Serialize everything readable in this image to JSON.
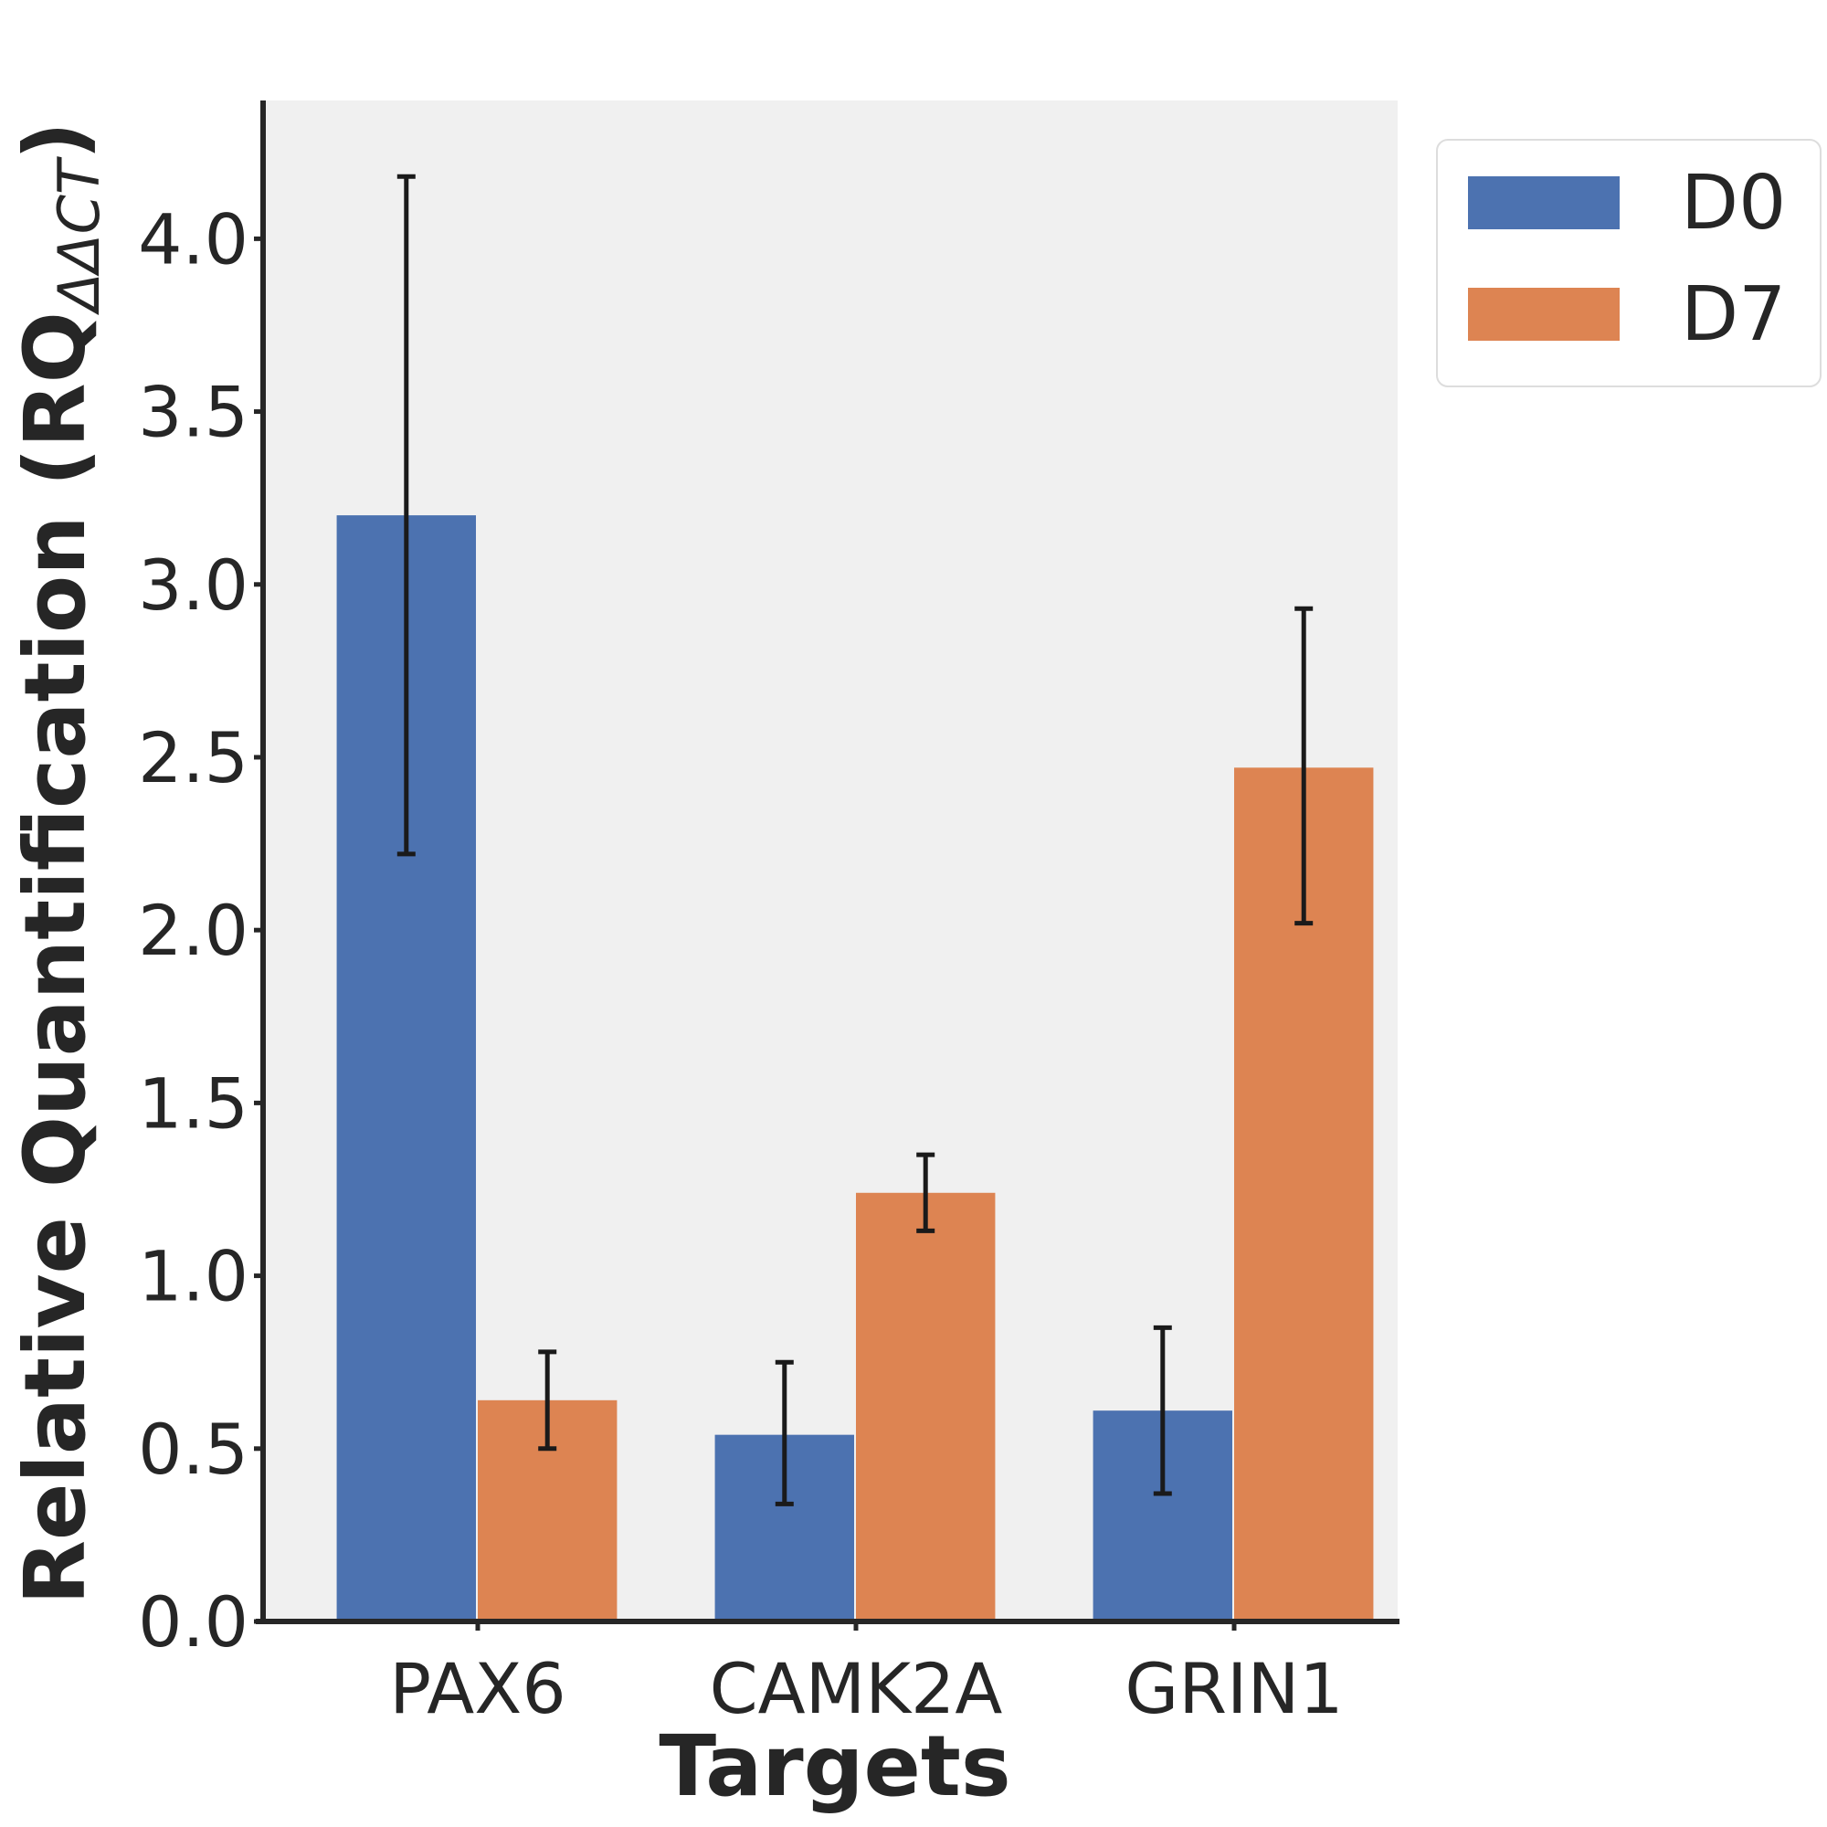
{
  "chart_data": {
    "type": "bar",
    "title": "",
    "xlabel": "Targets",
    "ylabel": {
      "main": "Relative Quantification (RQ",
      "subscript": "ΔΔCT",
      "close": ")"
    },
    "categories": [
      "PAX6",
      "CAMK2A",
      "GRIN1"
    ],
    "series": [
      {
        "name": "D0",
        "color": "#4c72b0",
        "values": [
          3.2,
          0.54,
          0.61
        ],
        "err_low": [
          2.22,
          0.34,
          0.37
        ],
        "err_high": [
          4.18,
          0.75,
          0.85
        ]
      },
      {
        "name": "D7",
        "color": "#dd8452",
        "values": [
          0.64,
          1.24,
          2.47
        ],
        "err_low": [
          0.5,
          1.13,
          2.02
        ],
        "err_high": [
          0.78,
          1.35,
          2.93
        ]
      }
    ],
    "ylim": [
      0,
      4.4
    ],
    "yticks": [
      "0.0",
      "0.5",
      "1.0",
      "1.5",
      "2.0",
      "2.5",
      "3.0",
      "3.5",
      "4.0"
    ],
    "grid": false,
    "plot_background": "#f0f0f0",
    "legend_position": "outside-top-right"
  }
}
